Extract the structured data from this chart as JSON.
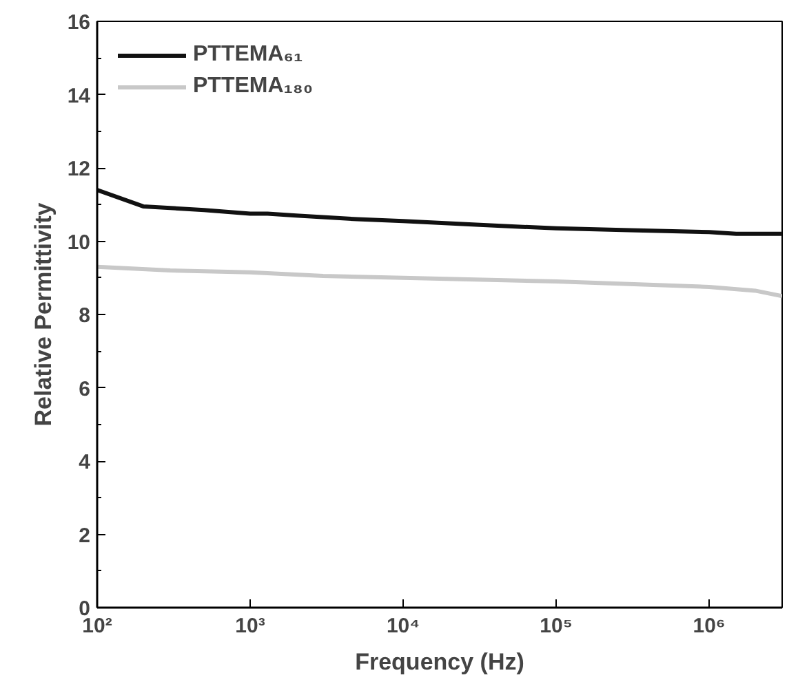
{
  "chart_data": {
    "type": "line",
    "xlabel": "Frequency (Hz)",
    "ylabel": "Relative Permittivity",
    "log": "x",
    "xlim": [
      100,
      3000000
    ],
    "xticks": [
      {
        "value": 100,
        "label": "10²"
      },
      {
        "value": 1000,
        "label": "10³"
      },
      {
        "value": 10000,
        "label": "10⁴"
      },
      {
        "value": 100000,
        "label": "10⁵"
      },
      {
        "value": 1000000,
        "label": "10⁶"
      }
    ],
    "ylim": [
      0,
      16
    ],
    "yticks": [
      0,
      2,
      4,
      6,
      8,
      10,
      12,
      14,
      16
    ],
    "grid": false,
    "legend": "top left",
    "marker": "none",
    "line_style": "solid",
    "series": [
      {
        "name": "PTTEMA₆₁",
        "color": "#111111",
        "x": [
          100,
          200,
          500,
          1000,
          1300,
          2000,
          5000,
          10000,
          30000,
          100000,
          300000,
          1000000,
          1500000,
          3000000
        ],
        "values": [
          11.4,
          10.95,
          10.85,
          10.75,
          10.75,
          10.7,
          10.6,
          10.55,
          10.45,
          10.35,
          10.3,
          10.25,
          10.2,
          10.2
        ]
      },
      {
        "name": "PTTEMA₁₈₀",
        "color": "#c8c8c8",
        "x": [
          100,
          300,
          1000,
          3000,
          10000,
          100000,
          500000,
          1000000,
          2000000,
          3000000
        ],
        "values": [
          9.3,
          9.2,
          9.15,
          9.05,
          9.0,
          8.9,
          8.8,
          8.75,
          8.65,
          8.5
        ]
      }
    ]
  }
}
